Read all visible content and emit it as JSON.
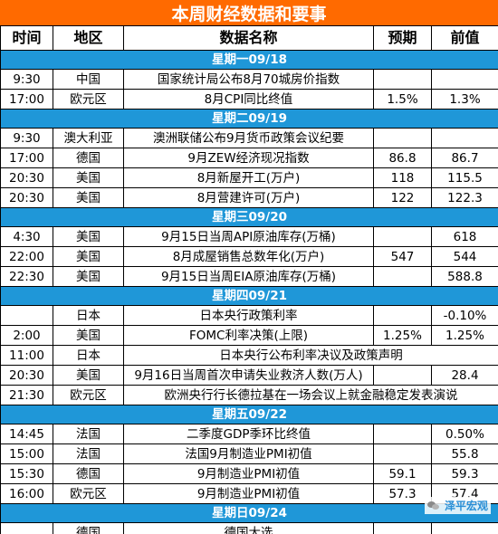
{
  "title": "本周财经数据和要事",
  "headers": {
    "time": "时间",
    "region": "地区",
    "name": "数据名称",
    "forecast": "预期",
    "previous": "前值"
  },
  "days": [
    {
      "label": "星期一09/18",
      "rows": [
        {
          "time": "9:30",
          "region": "中国",
          "name": "国家统计局公布8月70城房价指数",
          "forecast": "",
          "previous": ""
        },
        {
          "time": "17:00",
          "region": "欧元区",
          "name": "8月CPI同比终值",
          "forecast": "1.5%",
          "previous": "1.3%"
        }
      ]
    },
    {
      "label": "星期二09/19",
      "rows": [
        {
          "time": "9:30",
          "region": "澳大利亚",
          "name": "澳洲联储公布9月货币政策会议纪要",
          "forecast": "",
          "previous": ""
        },
        {
          "time": "17:00",
          "region": "德国",
          "name": "9月ZEW经济现况指数",
          "forecast": "86.8",
          "previous": "86.7"
        },
        {
          "time": "20:30",
          "region": "美国",
          "name": "8月新屋开工(万户)",
          "forecast": "118",
          "previous": "115.5"
        },
        {
          "time": "20:30",
          "region": "美国",
          "name": "8月营建许可(万户)",
          "forecast": "122",
          "previous": "122.3"
        }
      ]
    },
    {
      "label": "星期三09/20",
      "rows": [
        {
          "time": "4:30",
          "region": "美国",
          "name": "9月15日当周API原油库存(万桶)",
          "forecast": "",
          "previous": "618"
        },
        {
          "time": "22:00",
          "region": "美国",
          "name": "8月成屋销售总数年化(万户)",
          "forecast": "547",
          "previous": "544"
        },
        {
          "time": "22:30",
          "region": "美国",
          "name": "9月15日当周EIA原油库存(万桶)",
          "forecast": "",
          "previous": "588.8"
        }
      ]
    },
    {
      "label": "星期四09/21",
      "rows": [
        {
          "time": "",
          "region": "日本",
          "name": "日本央行政策利率",
          "forecast": "",
          "previous": "-0.10%"
        },
        {
          "time": "2:00",
          "region": "美国",
          "name": "FOMC利率决策(上限)",
          "forecast": "1.25%",
          "previous": "1.25%"
        },
        {
          "time": "11:00",
          "region": "日本",
          "name": "日本央行公布利率决议及政策声明",
          "forecast": "",
          "previous": "",
          "merged": true
        },
        {
          "time": "20:30",
          "region": "美国",
          "name": "9月16日当周首次申请失业救济人数(万人)",
          "forecast": "",
          "previous": "28.4"
        },
        {
          "time": "21:30",
          "region": "欧元区",
          "name": "欧洲央行行长德拉基在一场会议上就金融稳定发表演说",
          "forecast": "",
          "previous": "",
          "merged": true
        }
      ]
    },
    {
      "label": "星期五09/22",
      "rows": [
        {
          "time": "14:45",
          "region": "法国",
          "name": "二季度GDP季环比终值",
          "forecast": "",
          "previous": "0.50%"
        },
        {
          "time": "15:00",
          "region": "法国",
          "name": "法国9月制造业PMI初值",
          "forecast": "",
          "previous": "55.8"
        },
        {
          "time": "15:30",
          "region": "德国",
          "name": "9月制造业PMI初值",
          "forecast": "59.1",
          "previous": "59.3"
        },
        {
          "time": "16:00",
          "region": "欧元区",
          "name": "9月制造业PMI初值",
          "forecast": "57.3",
          "previous": "57.4"
        }
      ]
    },
    {
      "label": "星期日09/24",
      "rows": [
        {
          "time": "",
          "region": "德国",
          "name": "德国大选",
          "forecast": "",
          "previous": ""
        }
      ]
    }
  ],
  "watermark": "泽平宏观"
}
